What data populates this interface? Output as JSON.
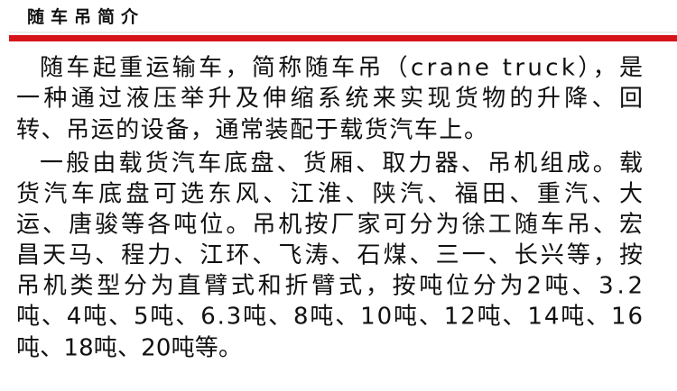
{
  "header": {
    "title": "随车吊简介"
  },
  "paragraphs": [
    {
      "lines": [
        "随车起重运输车，简称随车吊（crane truck），是",
        "一种通过液压举升及伸缩系统来实现货物的升降、回",
        "转、吊运的设备，通常装配于载货汽车上。"
      ]
    },
    {
      "lines": [
        "一般由载货汽车底盘、货厢、取力器、吊机组成。载",
        "货汽车底盘可选东风、江淮、陕汽、福田、重汽、大",
        "运、唐骏等各吨位。吊机按厂家可分为徐工随车吊、宏",
        "昌天马、程力、江环、飞涛、石煤、三一、长兴等，按",
        "吊机类型分为直臂式和折臂式，按吨位分为2吨、3.2",
        "吨、4吨、5吨、6.3吨、8吨、10吨、12吨、14吨、16",
        "吨、18吨、20吨等。"
      ]
    }
  ]
}
